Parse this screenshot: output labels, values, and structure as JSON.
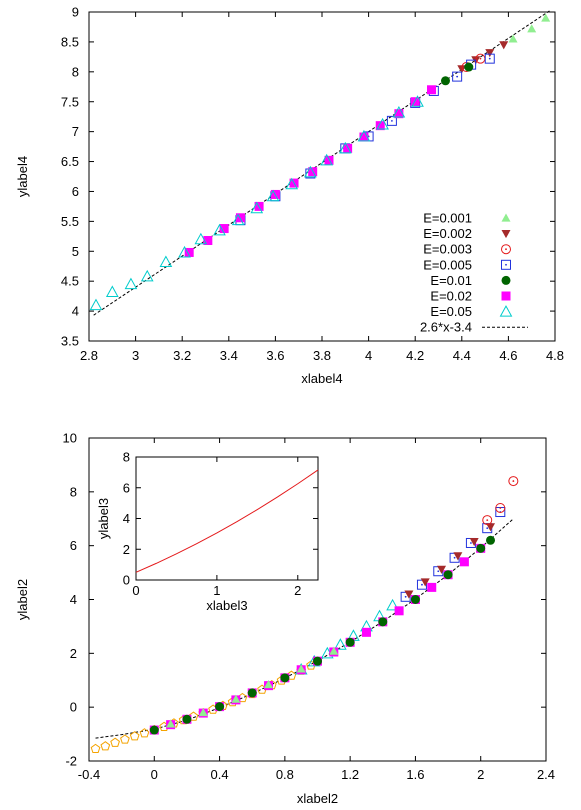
{
  "chart_data": [
    {
      "type": "scatter",
      "title": "",
      "xlabel": "xlabel4",
      "ylabel": "ylabel4",
      "xlim": [
        2.8,
        4.8
      ],
      "ylim": [
        3.5,
        9
      ],
      "xticks": [
        "2.8",
        "3",
        "3.2",
        "3.4",
        "3.6",
        "3.8",
        "4",
        "4.2",
        "4.4",
        "4.6",
        "4.8"
      ],
      "yticks": [
        "3.5",
        "4",
        "4.5",
        "5",
        "5.5",
        "6",
        "6.5",
        "7",
        "7.5",
        "8",
        "8.5",
        "9"
      ],
      "grid": false,
      "legend_position": "bottom-right",
      "series": [
        {
          "name": "E=0.001",
          "color": "#90ee90",
          "marker": "triangle-up-filled",
          "x": [
            4.62,
            4.7,
            4.76
          ],
          "y": [
            8.55,
            8.72,
            8.9
          ]
        },
        {
          "name": "E=0.002",
          "color": "#a52a2a",
          "marker": "triangle-down-filled",
          "x": [
            4.4,
            4.46,
            4.52,
            4.58
          ],
          "y": [
            8.05,
            8.2,
            8.32,
            8.45
          ]
        },
        {
          "name": "E=0.003",
          "color": "#e41a1c",
          "marker": "circle-dot",
          "x": [
            4.42,
            4.48
          ],
          "y": [
            8.08,
            8.22
          ]
        },
        {
          "name": "E=0.005",
          "color": "#2233dd",
          "marker": "square-dot",
          "x": [
            3.45,
            3.6,
            3.75,
            3.9,
            4.0,
            4.1,
            4.2,
            4.28,
            4.38,
            4.44,
            4.52
          ],
          "y": [
            5.52,
            5.92,
            6.3,
            6.72,
            6.92,
            7.18,
            7.48,
            7.68,
            7.92,
            8.12,
            8.22
          ]
        },
        {
          "name": "E=0.01",
          "color": "#006400",
          "marker": "circle-filled",
          "x": [
            4.33,
            4.43
          ],
          "y": [
            7.85,
            8.08
          ]
        },
        {
          "name": "E=0.02",
          "color": "#ff00ff",
          "marker": "square-filled",
          "x": [
            3.23,
            3.31,
            3.38,
            3.45,
            3.53,
            3.6,
            3.68,
            3.76,
            3.83,
            3.91,
            3.98,
            4.05,
            4.13,
            4.2,
            4.27
          ],
          "y": [
            4.98,
            5.18,
            5.38,
            5.56,
            5.75,
            5.95,
            6.14,
            6.33,
            6.52,
            6.72,
            6.91,
            7.1,
            7.3,
            7.5,
            7.7
          ]
        },
        {
          "name": "E=0.05",
          "color": "#00cccc",
          "marker": "triangle-up-open",
          "x": [
            2.83,
            2.9,
            2.98,
            3.05,
            3.13,
            3.21,
            3.28,
            3.36,
            3.44,
            3.52,
            3.59,
            3.67,
            3.75,
            3.82,
            3.9,
            3.98,
            4.06,
            4.13,
            4.21
          ],
          "y": [
            4.1,
            4.32,
            4.45,
            4.58,
            4.82,
            4.98,
            5.2,
            5.35,
            5.52,
            5.72,
            5.92,
            6.12,
            6.32,
            6.52,
            6.72,
            6.92,
            7.12,
            7.32,
            7.5
          ]
        }
      ],
      "fit_line": {
        "label": "2.6*x-3.4",
        "slope": 2.6,
        "intercept": -3.4,
        "x_range": [
          2.82,
          4.78
        ],
        "style": "dashed",
        "color": "#000000"
      }
    },
    {
      "type": "scatter",
      "title": "",
      "xlabel": "xlabel2",
      "ylabel": "ylabel2",
      "xlim": [
        -0.4,
        2.4
      ],
      "ylim": [
        -2,
        10
      ],
      "xticks": [
        "-0.4",
        "0",
        "0.4",
        "0.8",
        "1.2",
        "1.6",
        "2",
        "2.4"
      ],
      "yticks": [
        "-2",
        "0",
        "2",
        "4",
        "6",
        "8",
        "10"
      ],
      "grid": false,
      "series": [
        {
          "name": "",
          "color": "#f4a300",
          "marker": "pentagon-open",
          "x": [
            -0.36,
            -0.3,
            -0.24,
            -0.18,
            -0.12,
            -0.06,
            0.0,
            0.06,
            0.12,
            0.18,
            0.24,
            0.3,
            0.36,
            0.42,
            0.48,
            0.54,
            0.6,
            0.66,
            0.72,
            0.78,
            0.84,
            0.9,
            0.96
          ],
          "y": [
            -1.55,
            -1.45,
            -1.32,
            -1.2,
            -1.08,
            -0.97,
            -0.85,
            -0.73,
            -0.6,
            -0.48,
            -0.35,
            -0.22,
            -0.09,
            0.05,
            0.19,
            0.34,
            0.49,
            0.65,
            0.82,
            0.99,
            1.17,
            1.36,
            1.55
          ]
        },
        {
          "name": "",
          "color": "#00cccc",
          "marker": "triangle-up-open",
          "x": [
            0.9,
            0.98,
            1.06,
            1.14,
            1.22,
            1.3,
            1.38,
            1.46
          ],
          "y": [
            1.4,
            1.7,
            2.0,
            2.32,
            2.65,
            3.0,
            3.38,
            3.78
          ]
        },
        {
          "name": "",
          "color": "#ff00ff",
          "marker": "square-filled",
          "x": [
            0.0,
            0.1,
            0.2,
            0.3,
            0.4,
            0.5,
            0.6,
            0.7,
            0.8,
            0.9,
            1.0,
            1.1,
            1.2,
            1.3,
            1.4,
            1.5,
            1.6,
            1.7,
            1.8,
            1.9,
            2.0
          ],
          "y": [
            -0.85,
            -0.65,
            -0.45,
            -0.22,
            0.02,
            0.27,
            0.53,
            0.8,
            1.09,
            1.39,
            1.71,
            2.05,
            2.41,
            2.78,
            3.17,
            3.58,
            4.0,
            4.45,
            4.92,
            5.4,
            5.9
          ]
        },
        {
          "name": "",
          "color": "#2233dd",
          "marker": "square-dot",
          "x": [
            1.54,
            1.64,
            1.74,
            1.84,
            1.94,
            2.04,
            2.12
          ],
          "y": [
            4.1,
            4.55,
            5.05,
            5.55,
            6.1,
            6.65,
            7.25
          ]
        },
        {
          "name": "",
          "color": "#a52a2a",
          "marker": "triangle-down-filled",
          "x": [
            1.56,
            1.66,
            1.76,
            1.86,
            1.96,
            2.06
          ],
          "y": [
            4.2,
            4.65,
            5.12,
            5.62,
            6.15,
            6.7
          ]
        },
        {
          "name": "",
          "color": "#006400",
          "marker": "circle-filled",
          "x": [
            0.0,
            0.2,
            0.4,
            0.6,
            0.8,
            1.0,
            1.2,
            1.4,
            1.6,
            1.8,
            2.0,
            2.06
          ],
          "y": [
            -0.85,
            -0.45,
            0.02,
            0.53,
            1.09,
            1.71,
            2.41,
            3.17,
            4.0,
            4.92,
            5.9,
            6.2
          ]
        },
        {
          "name": "",
          "color": "#90ee90",
          "marker": "triangle-up-filled",
          "x": [
            0.1,
            0.3,
            0.5,
            0.7,
            0.9,
            1.1
          ],
          "y": [
            -0.62,
            -0.2,
            0.3,
            0.84,
            1.42,
            2.08
          ]
        },
        {
          "name": "",
          "color": "#e41a1c",
          "marker": "circle-dot",
          "x": [
            2.04,
            2.12,
            2.2
          ],
          "y": [
            6.95,
            7.4,
            8.4
          ]
        }
      ],
      "fit_curve": {
        "style": "dashed",
        "color": "#000000",
        "x": [
          -0.36,
          -0.2,
          0,
          0.2,
          0.4,
          0.6,
          0.8,
          1.0,
          1.2,
          1.4,
          1.6,
          1.8,
          2.0,
          2.2
        ],
        "y": [
          -1.15,
          -1.02,
          -0.82,
          -0.48,
          -0.02,
          0.5,
          1.08,
          1.72,
          2.42,
          3.18,
          4.02,
          4.92,
          5.92,
          7.0
        ]
      },
      "inset": {
        "type": "line",
        "xlabel": "xlabel3",
        "ylabel": "ylabel3",
        "xlim": [
          0,
          2.25
        ],
        "ylim": [
          0,
          8
        ],
        "xticks": [
          "0",
          "1",
          "2"
        ],
        "yticks": [
          "0",
          "2",
          "4",
          "6",
          "8"
        ],
        "series": [
          {
            "name": "",
            "color": "#e41a1c",
            "x": [
              0,
              0.25,
              0.5,
              0.75,
              1.0,
              1.25,
              1.5,
              1.75,
              2.0,
              2.25
            ],
            "y": [
              0.5,
              1.08,
              1.7,
              2.36,
              3.06,
              3.8,
              4.58,
              5.4,
              6.26,
              7.16
            ]
          }
        ]
      }
    }
  ]
}
